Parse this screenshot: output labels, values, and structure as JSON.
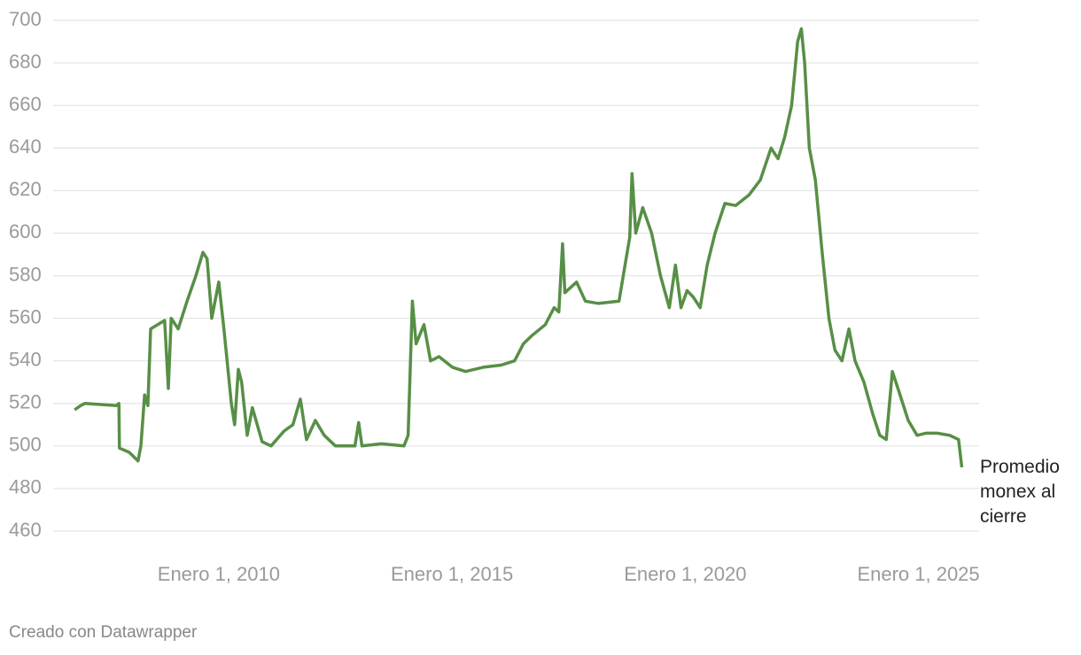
{
  "chart_data": {
    "type": "line",
    "x": [
      2006.91,
      2007.04,
      2007.13,
      2007.8,
      2007.86,
      2007.87,
      2008.08,
      2008.27,
      2008.33,
      2008.41,
      2008.48,
      2008.54,
      2008.84,
      2008.92,
      2008.98,
      2009.13,
      2009.32,
      2009.51,
      2009.66,
      2009.75,
      2009.85,
      2010.0,
      2010.11,
      2010.27,
      2010.34,
      2010.42,
      2010.49,
      2010.61,
      2010.72,
      2010.93,
      2011.12,
      2011.4,
      2011.59,
      2011.75,
      2011.88,
      2012.07,
      2012.26,
      2012.5,
      2012.92,
      2013.0,
      2013.07,
      2013.49,
      2013.97,
      2014.06,
      2014.15,
      2014.23,
      2014.4,
      2014.54,
      2014.72,
      2015.01,
      2015.29,
      2015.67,
      2016.05,
      2016.34,
      2016.53,
      2016.72,
      2017.0,
      2017.19,
      2017.29,
      2017.37,
      2017.42,
      2017.67,
      2017.86,
      2018.14,
      2018.58,
      2018.71,
      2018.81,
      2018.86,
      2018.94,
      2019.09,
      2019.28,
      2019.47,
      2019.66,
      2019.79,
      2019.91,
      2020.04,
      2020.17,
      2020.32,
      2020.47,
      2020.64,
      2020.85,
      2021.08,
      2021.37,
      2021.61,
      2021.84,
      2021.99,
      2022.13,
      2022.28,
      2022.41,
      2022.49,
      2022.56,
      2022.66,
      2022.79,
      2022.94,
      2023.08,
      2023.21,
      2023.36,
      2023.51,
      2023.64,
      2023.83,
      2024.02,
      2024.17,
      2024.31,
      2024.44,
      2024.59,
      2024.78,
      2024.97,
      2025.16,
      2025.4,
      2025.67,
      2025.86,
      2025.93
    ],
    "series": [
      {
        "name": "Promedio monex al cierre",
        "color": "#578f46",
        "values": [
          517,
          519,
          520,
          519,
          520,
          499,
          497,
          493,
          500,
          524,
          519,
          555,
          559,
          527,
          560,
          555,
          568,
          580,
          591,
          588,
          560,
          577,
          555,
          520,
          510,
          536,
          530,
          505,
          518,
          502,
          500,
          507,
          510,
          522,
          503,
          512,
          505,
          500,
          500,
          511,
          500,
          501,
          500,
          505,
          568,
          548,
          557,
          540,
          542,
          537,
          535,
          537,
          538,
          540,
          548,
          552,
          557,
          565,
          563,
          595,
          572,
          577,
          568,
          567,
          568,
          585,
          598,
          628,
          600,
          612,
          600,
          580,
          565,
          585,
          565,
          573,
          570,
          565,
          585,
          600,
          614,
          613,
          618,
          625,
          640,
          635,
          645,
          660,
          690,
          696,
          680,
          640,
          625,
          590,
          560,
          545,
          540,
          555,
          540,
          530,
          515,
          505,
          503,
          535,
          525,
          512,
          505,
          506,
          506,
          505,
          503,
          490
        ]
      }
    ],
    "xlim": [
      2006.45,
      2026.3
    ],
    "xticks": [
      {
        "value": 2010,
        "label": "Enero 1, 2010"
      },
      {
        "value": 2015,
        "label": "Enero 1, 2015"
      },
      {
        "value": 2020,
        "label": "Enero 1, 2020"
      },
      {
        "value": 2025,
        "label": "Enero 1, 2025"
      }
    ],
    "ylim": [
      460,
      700
    ],
    "yticks": [
      460,
      480,
      500,
      520,
      540,
      560,
      580,
      600,
      620,
      640,
      660,
      680,
      700
    ],
    "grid": true,
    "footer": "Creado con Datawrapper"
  }
}
